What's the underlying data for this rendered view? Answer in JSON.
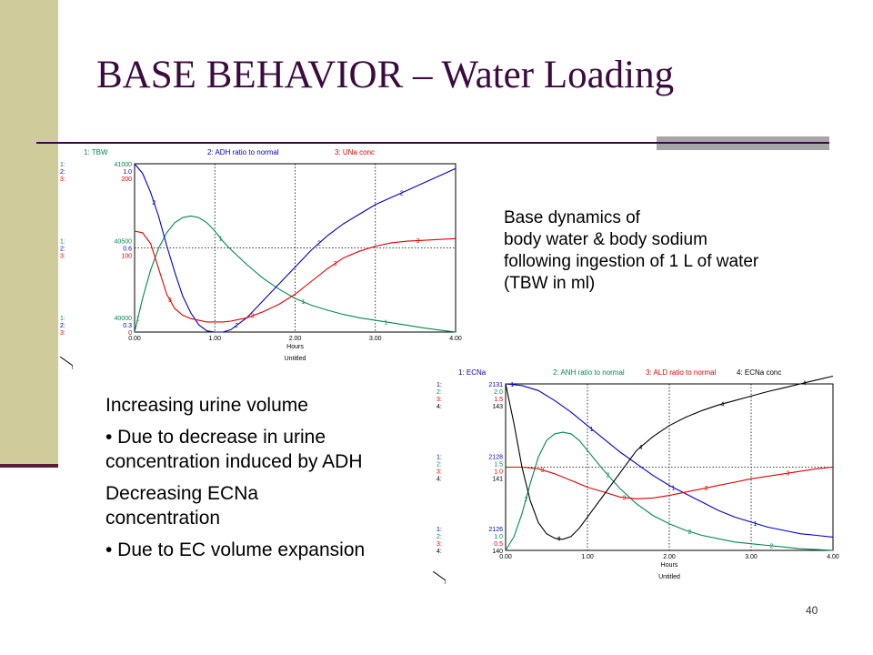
{
  "slide": {
    "title": "BASE BEHAVIOR – Water Loading",
    "caption_lines": [
      "Base dynamics of",
      "body water & body sodium",
      "following ingestion of 1 L of water",
      "(TBW in ml)"
    ],
    "notes": {
      "heading1": "Increasing urine volume",
      "bullet1_line1": "• Due to decrease in urine",
      "bullet1_line2": "concentration induced by ADH",
      "heading2_line1": "Decreasing ECNa",
      "heading2_line2": "concentration",
      "bullet2": "• Due to EC volume expansion"
    },
    "page_number": "40"
  },
  "colors": {
    "accent_band": "#cfcb9a",
    "title_color": "#3b0a3e",
    "series1": "#0000c8",
    "series2": "#008a4a",
    "series3": "#e00000",
    "series4": "#000000"
  },
  "chart_data": [
    {
      "type": "line",
      "xlabel": "Hours",
      "footer": "Untitled",
      "x_ticks": [
        "0.00",
        "1.00",
        "2.00",
        "3.00",
        "4.00"
      ],
      "xlim": [
        0,
        4
      ],
      "legend": [
        "1: TBW",
        "2: ADH ratio to normal",
        "3: UNa conc"
      ],
      "axis_blocks": [
        {
          "rows": [
            "1:",
            "2:",
            "3:"
          ],
          "vals": [
            "41000",
            "1.0",
            "200"
          ]
        },
        {
          "rows": [
            "1:",
            "2:",
            "3:"
          ],
          "vals": [
            "40500",
            "0.6",
            "100"
          ]
        },
        {
          "rows": [
            "1:",
            "2:",
            "3:"
          ],
          "vals": [
            "40000",
            "0.3",
            "0"
          ]
        }
      ],
      "series": [
        {
          "id": "1",
          "color": "#008a4a",
          "ylim": [
            40000,
            41000
          ],
          "x": [
            0,
            0.1,
            0.2,
            0.3,
            0.4,
            0.5,
            0.6,
            0.7,
            0.8,
            0.9,
            1.0,
            1.1,
            1.2,
            1.4,
            1.6,
            1.8,
            2.0,
            2.2,
            2.4,
            2.6,
            2.8,
            3.0,
            3.2,
            3.4,
            3.6,
            3.8,
            4.0
          ],
          "y": [
            40000,
            40200,
            40370,
            40500,
            40590,
            40650,
            40680,
            40690,
            40680,
            40650,
            40600,
            40540,
            40490,
            40400,
            40320,
            40255,
            40200,
            40160,
            40130,
            40105,
            40085,
            40070,
            40055,
            40040,
            40025,
            40012,
            40000
          ],
          "marker_x": [
            0.04,
            1.07,
            2.1,
            3.13
          ]
        },
        {
          "id": "2",
          "color": "#0000c8",
          "ylim": [
            0.3,
            1.0
          ],
          "x": [
            0,
            0.1,
            0.2,
            0.3,
            0.4,
            0.5,
            0.6,
            0.7,
            0.8,
            0.9,
            1.0,
            1.1,
            1.2,
            1.4,
            1.6,
            1.8,
            2.0,
            2.2,
            2.4,
            2.6,
            2.8,
            3.0,
            3.2,
            3.4,
            3.6,
            3.8,
            4.0
          ],
          "y": [
            1.0,
            0.96,
            0.88,
            0.78,
            0.66,
            0.55,
            0.45,
            0.38,
            0.33,
            0.305,
            0.3,
            0.3,
            0.31,
            0.36,
            0.43,
            0.5,
            0.57,
            0.64,
            0.7,
            0.75,
            0.79,
            0.83,
            0.86,
            0.89,
            0.92,
            0.95,
            0.98
          ],
          "marker_x": [
            0.24,
            1.27,
            2.3,
            3.33
          ]
        },
        {
          "id": "3",
          "color": "#e00000",
          "ylim": [
            0,
            200
          ],
          "x": [
            0,
            0.1,
            0.2,
            0.3,
            0.4,
            0.5,
            0.6,
            0.7,
            0.8,
            0.9,
            1.0,
            1.1,
            1.2,
            1.4,
            1.6,
            1.8,
            2.0,
            2.2,
            2.4,
            2.6,
            2.8,
            3.0,
            3.2,
            3.4,
            3.6,
            3.8,
            4.0
          ],
          "y": [
            120,
            118,
            105,
            75,
            45,
            28,
            20,
            16,
            14,
            12,
            12,
            12,
            13,
            17,
            24,
            33,
            45,
            60,
            75,
            88,
            96,
            102,
            106,
            108,
            109,
            110,
            111
          ],
          "marker_x": [
            0.44,
            1.47,
            2.5,
            3.53
          ]
        }
      ]
    },
    {
      "type": "line",
      "xlabel": "Hours",
      "footer": "Untitled",
      "x_ticks": [
        "0.00",
        "1.00",
        "2.00",
        "3.00",
        "4.00"
      ],
      "xlim": [
        0,
        4
      ],
      "legend": [
        "1: ECNa",
        "2: ANH ratio to normal",
        "3: ALD ratio to normal",
        "4: ECNa conc"
      ],
      "axis_blocks": [
        {
          "rows": [
            "1:",
            "2:",
            "3:",
            "4:"
          ],
          "vals": [
            "2131",
            "2.0",
            "1.5",
            "143"
          ]
        },
        {
          "rows": [
            "1:",
            "2:",
            "3:",
            "4:"
          ],
          "vals": [
            "2128",
            "1.5",
            "1.0",
            "141"
          ]
        },
        {
          "rows": [
            "1:",
            "2:",
            "3:",
            "4:"
          ],
          "vals": [
            "2126",
            "1.0",
            "0.5",
            "140"
          ]
        }
      ],
      "series": [
        {
          "id": "1",
          "color": "#0000c8",
          "ylim": [
            2126,
            2131
          ],
          "x": [
            0,
            0.2,
            0.4,
            0.6,
            0.8,
            1.0,
            1.2,
            1.4,
            1.6,
            1.8,
            2.0,
            2.2,
            2.4,
            2.6,
            2.8,
            3.0,
            3.2,
            3.4,
            3.6,
            3.8,
            4.0
          ],
          "y": [
            2131,
            2130.95,
            2130.8,
            2130.5,
            2130.15,
            2129.75,
            2129.35,
            2128.95,
            2128.6,
            2128.25,
            2127.95,
            2127.7,
            2127.45,
            2127.2,
            2127.0,
            2126.85,
            2126.7,
            2126.6,
            2126.5,
            2126.45,
            2126.4
          ],
          "marker_x": [
            0.08,
            1.05,
            2.05,
            3.05
          ]
        },
        {
          "id": "2",
          "color": "#008a4a",
          "ylim": [
            1.0,
            2.0
          ],
          "x": [
            0,
            0.1,
            0.2,
            0.3,
            0.4,
            0.5,
            0.6,
            0.7,
            0.8,
            0.9,
            1.0,
            1.2,
            1.4,
            1.6,
            1.8,
            2.0,
            2.2,
            2.4,
            2.6,
            2.8,
            3.0,
            3.2,
            3.4,
            3.6,
            3.8,
            4.0
          ],
          "y": [
            1.0,
            1.08,
            1.22,
            1.4,
            1.56,
            1.66,
            1.7,
            1.71,
            1.7,
            1.66,
            1.6,
            1.48,
            1.37,
            1.28,
            1.21,
            1.16,
            1.12,
            1.09,
            1.07,
            1.05,
            1.04,
            1.03,
            1.02,
            1.01,
            1.005,
            1.0
          ],
          "marker_x": [
            0.25,
            1.25,
            2.25,
            3.25
          ]
        },
        {
          "id": "3",
          "color": "#e00000",
          "ylim": [
            0.5,
            1.5
          ],
          "x": [
            0,
            0.2,
            0.4,
            0.6,
            0.8,
            1.0,
            1.2,
            1.4,
            1.6,
            1.8,
            2.0,
            2.2,
            2.4,
            2.6,
            2.8,
            3.0,
            3.2,
            3.4,
            3.6,
            3.8,
            4.0
          ],
          "y": [
            1.0,
            1.0,
            0.99,
            0.96,
            0.92,
            0.88,
            0.85,
            0.82,
            0.81,
            0.815,
            0.83,
            0.85,
            0.87,
            0.89,
            0.91,
            0.93,
            0.945,
            0.96,
            0.975,
            0.99,
            1.0
          ],
          "marker_x": [
            0.45,
            1.45,
            2.45,
            3.45
          ]
        },
        {
          "id": "4",
          "color": "#000000",
          "ylim": [
            140,
            143
          ],
          "x": [
            0,
            0.1,
            0.2,
            0.3,
            0.4,
            0.5,
            0.6,
            0.7,
            0.8,
            0.9,
            1.0,
            1.2,
            1.4,
            1.6,
            1.8,
            2.0,
            2.2,
            2.4,
            2.6,
            2.8,
            3.0,
            3.2,
            3.4,
            3.6,
            3.8,
            4.0
          ],
          "y": [
            143,
            142.3,
            141.5,
            140.9,
            140.5,
            140.3,
            140.22,
            140.2,
            140.25,
            140.4,
            140.6,
            141.0,
            141.4,
            141.8,
            142.05,
            142.25,
            142.4,
            142.52,
            142.62,
            142.7,
            142.78,
            142.86,
            142.93,
            143.0,
            143.07,
            143.14
          ],
          "marker_x": [
            0.65,
            1.65,
            2.65,
            3.65
          ]
        }
      ]
    }
  ]
}
